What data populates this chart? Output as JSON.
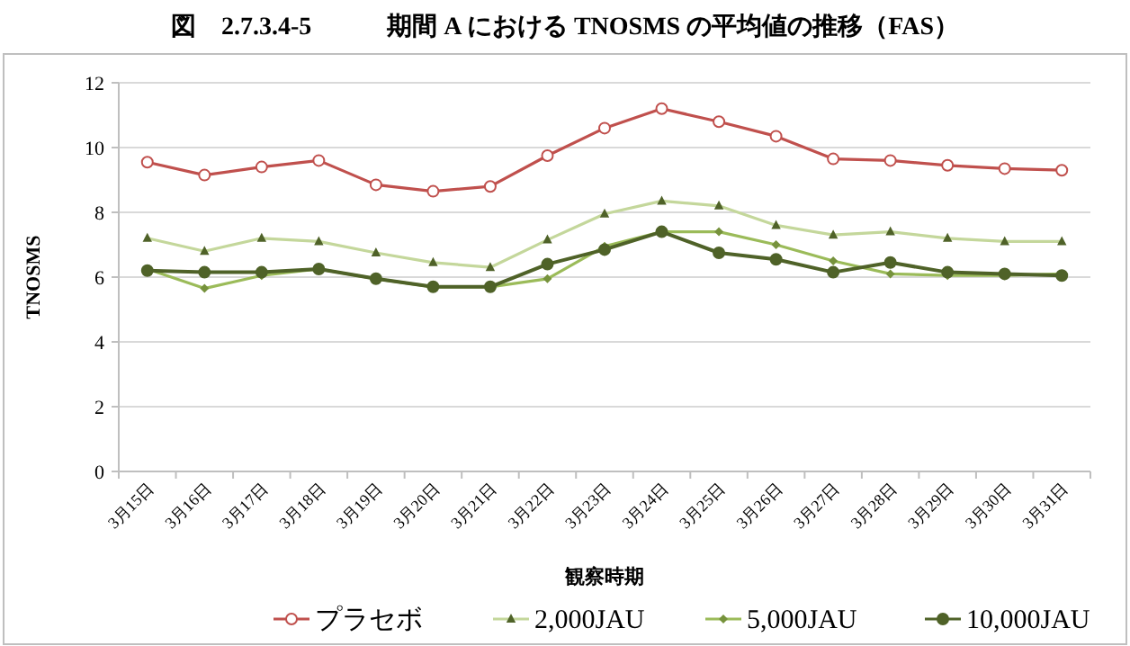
{
  "chart_data": {
    "type": "line",
    "title": "図　2.7.3.4-5　　　期間 A における TNOSMS の平均値の推移（FAS）",
    "xlabel": "観察時期",
    "ylabel": "TNOSMS",
    "categories": [
      "3月15日",
      "3月16日",
      "3月17日",
      "3月18日",
      "3月19日",
      "3月20日",
      "3月21日",
      "3月22日",
      "3月23日",
      "3月24日",
      "3月25日",
      "3月26日",
      "3月27日",
      "3月28日",
      "3月29日",
      "3月30日",
      "3月31日"
    ],
    "ylim": [
      0,
      12
    ],
    "yticks": [
      0,
      2,
      4,
      6,
      8,
      10,
      12
    ],
    "grid": "y",
    "legend": "bottom",
    "line_style": "solid",
    "series": [
      {
        "name": "プラセボ",
        "color": "#c0504d",
        "marker": "circle",
        "values": [
          9.55,
          9.15,
          9.4,
          9.6,
          8.85,
          8.65,
          8.8,
          9.75,
          10.6,
          11.2,
          10.8,
          10.35,
          9.65,
          9.6,
          9.45,
          9.35,
          9.3
        ]
      },
      {
        "name": "2,000JAU",
        "color": "#c4d79b",
        "marker": "triangle",
        "values": [
          7.2,
          6.8,
          7.2,
          7.1,
          6.75,
          6.45,
          6.3,
          7.15,
          7.95,
          8.35,
          8.2,
          7.6,
          7.3,
          7.4,
          7.2,
          7.1,
          7.1
        ]
      },
      {
        "name": "5,000JAU",
        "color": "#9bbb59",
        "marker": "diamond",
        "values": [
          6.25,
          5.65,
          6.05,
          6.25,
          5.95,
          5.7,
          5.7,
          5.95,
          6.95,
          7.4,
          7.4,
          7.0,
          6.5,
          6.1,
          6.05,
          6.05,
          6.1
        ]
      },
      {
        "name": "10,000JAU",
        "color": "#4f6228",
        "marker": "circle",
        "values": [
          6.2,
          6.15,
          6.15,
          6.25,
          5.95,
          5.7,
          5.7,
          6.4,
          6.85,
          7.4,
          6.75,
          6.55,
          6.15,
          6.45,
          6.15,
          6.1,
          6.05
        ]
      }
    ]
  }
}
